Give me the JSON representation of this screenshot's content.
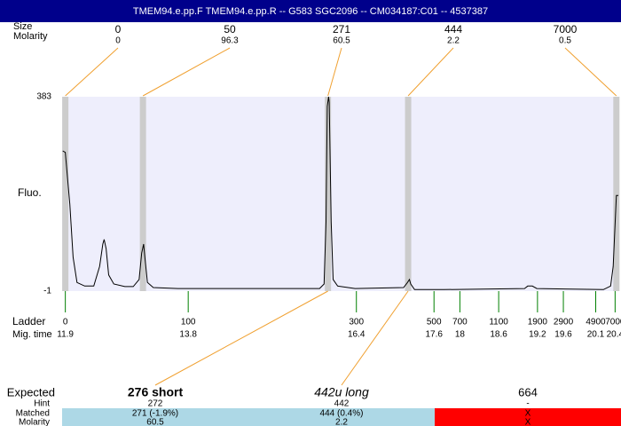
{
  "header": {
    "title": "TMEM94.e.pp.F  TMEM94.e.pp.R -- G583 SGC2096 -- CM034187:C01 -- 4537387"
  },
  "labels": {
    "size": "Size",
    "molarity": "Molarity",
    "fluo": "Fluo.",
    "ladder": "Ladder",
    "mig_time": "Mig. time",
    "expected": "Expected",
    "hint": "Hint",
    "matched": "Matched",
    "molarity_row": "Molarity"
  },
  "alignment": {
    "sizes": [
      0,
      50,
      271,
      444,
      7000
    ],
    "molarity": [
      0,
      96.3,
      60.5,
      2.2,
      0.5
    ],
    "times": [
      11.9,
      13.1,
      15.96,
      17.2,
      20.42
    ],
    "line_color": "#f0a030",
    "band_color": "#cccccc"
  },
  "chart_data": {
    "type": "line",
    "ylim": [
      -1,
      383
    ],
    "yticks": [
      -1,
      383
    ],
    "xlim": [
      11.85,
      20.45
    ],
    "x": [
      11.86,
      11.9,
      11.97,
      12.02,
      12.08,
      12.2,
      12.34,
      12.43,
      12.48,
      12.5,
      12.53,
      12.57,
      12.65,
      12.82,
      12.95,
      13.04,
      13.08,
      13.11,
      13.13,
      13.17,
      13.26,
      13.64,
      15.01,
      15.83,
      15.9,
      15.93,
      15.95,
      15.97,
      15.98,
      16.01,
      16.04,
      16.11,
      16.38,
      17.13,
      17.19,
      17.22,
      17.24,
      17.3,
      17.75,
      19.0,
      19.05,
      19.12,
      19.19,
      20.22,
      20.33,
      20.37,
      20.42,
      20.45
    ],
    "values": [
      276,
      273,
      171,
      66,
      16,
      9,
      9,
      48,
      92,
      101,
      83,
      31,
      13,
      8,
      8,
      22,
      74,
      92,
      66,
      16,
      6,
      4,
      4,
      4,
      13,
      136,
      364,
      383,
      372,
      136,
      22,
      9,
      4,
      6,
      16,
      22,
      13,
      2,
      2,
      4,
      9,
      9,
      4,
      2,
      9,
      48,
      188,
      188
    ],
    "color": "#000000",
    "plot_color": "#eeeefc"
  },
  "ladder": {
    "sizes": [
      0,
      100,
      300,
      500,
      700,
      1100,
      1900,
      2900,
      4900,
      7000
    ],
    "times": [
      11.9,
      13.8,
      16.4,
      17.6,
      18,
      18.6,
      19.2,
      19.6,
      20.1,
      20.4
    ],
    "color": "#008000"
  },
  "expected": [
    {
      "label": "276 short",
      "hint": 272,
      "matched": "271 (-1.9%)",
      "molarity": 60.5,
      "color": "#add8e6"
    },
    {
      "label": "442u long",
      "hint": 442,
      "matched": "444 (0.4%)",
      "molarity": 2.2,
      "color": "#add8e6"
    },
    {
      "label": "664",
      "hint": "-",
      "matched": "X",
      "molarity": "X",
      "color": "#ff0000"
    }
  ]
}
